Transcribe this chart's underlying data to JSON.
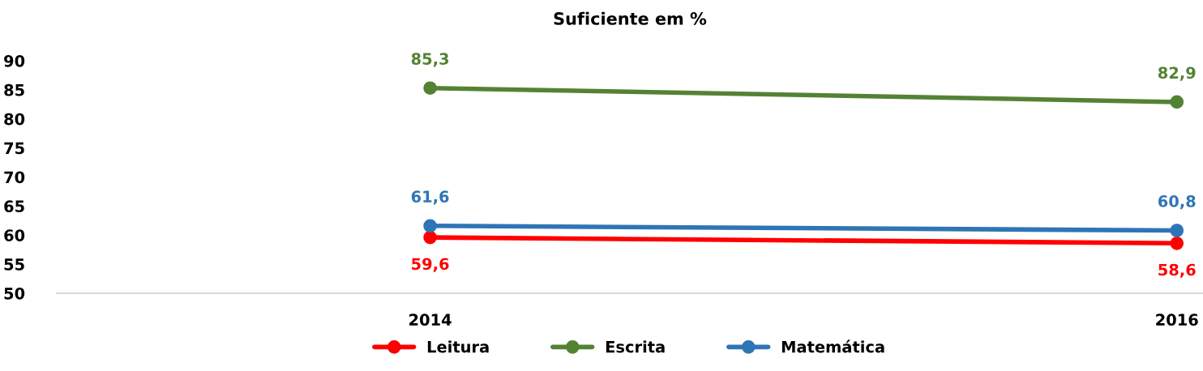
{
  "chart_data": {
    "type": "line",
    "title": "Suficiente em %",
    "x": [
      2014,
      2016
    ],
    "xlim": [
      2013,
      2016.07
    ],
    "xticks": [
      2014,
      2016
    ],
    "ylim": [
      50,
      90
    ],
    "yticks": [
      50,
      55,
      60,
      65,
      70,
      75,
      80,
      85,
      90
    ],
    "series": [
      {
        "name": "Leitura",
        "color": "#ff0000",
        "values": [
          59.6,
          58.6
        ],
        "value_labels": [
          "59,6",
          "58,6"
        ]
      },
      {
        "name": "Escrita",
        "color": "#548235",
        "values": [
          85.3,
          82.9
        ],
        "value_labels": [
          "85,3",
          "82,9"
        ]
      },
      {
        "name": "Matemática",
        "color": "#2e75b6",
        "values": [
          61.6,
          60.8
        ],
        "value_labels": [
          "61,6",
          "60,8"
        ]
      }
    ],
    "marker": "circle",
    "line_style": "solid",
    "grid": false,
    "legend": "bottom"
  }
}
